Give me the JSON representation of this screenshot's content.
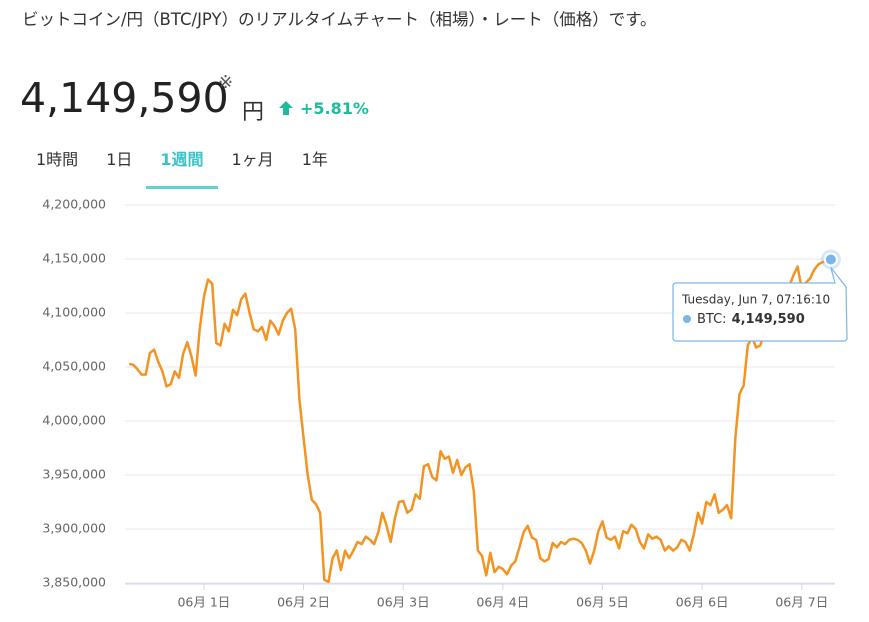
{
  "header": {
    "description": "ビットコイン/円（BTC/JPY）のリアルタイムチャート（相場）・レート（価格）です。",
    "price": "4,149,590",
    "price_note": "※",
    "unit": "円",
    "change": "+5.81%"
  },
  "tabs": {
    "items": [
      "1時間",
      "1日",
      "1週間",
      "1ヶ月",
      "1年"
    ],
    "active": 2
  },
  "chart_data": {
    "type": "line",
    "x": [
      -18,
      -17,
      -16,
      -15,
      -14,
      -13,
      -12,
      -11,
      -10,
      -9,
      -8,
      -7,
      -6,
      -5,
      -4,
      -3,
      -2,
      -1,
      0,
      1,
      2,
      3,
      4,
      5,
      6,
      7,
      8,
      9,
      10,
      11,
      12,
      13,
      14,
      15,
      16,
      17,
      18,
      19,
      20,
      21,
      22,
      23,
      24,
      25,
      26,
      27,
      28,
      29,
      30,
      31,
      32,
      33,
      34,
      35,
      36,
      37,
      38,
      39,
      40,
      41,
      42,
      43,
      44,
      45,
      46,
      47,
      48,
      49,
      50,
      51,
      52,
      53,
      54,
      55,
      56,
      57,
      58,
      59,
      60,
      61,
      62,
      63,
      64,
      65,
      66,
      67,
      68,
      69,
      70,
      71,
      72,
      73,
      74,
      75,
      76,
      77,
      78,
      79,
      80,
      81,
      82,
      83,
      84,
      85,
      86,
      87,
      88,
      89,
      90,
      91,
      92,
      93,
      94,
      95,
      96,
      97,
      98,
      99,
      100,
      101,
      102,
      103,
      104,
      105,
      106,
      107,
      108,
      109,
      110,
      111,
      112,
      113,
      114,
      115,
      116,
      117,
      118,
      119,
      120,
      121,
      122,
      123,
      124,
      125,
      126,
      127,
      128,
      129,
      130,
      131,
      132,
      133,
      134,
      135,
      136,
      137,
      138,
      139,
      140,
      141,
      142,
      143,
      144,
      145,
      146,
      147,
      148,
      149,
      150,
      151
    ],
    "series": [
      {
        "color": "#f39322",
        "values": [
          4053000,
          4052000,
          4048000,
          4043000,
          4043000,
          4063000,
          4066000,
          4055000,
          4046000,
          4032000,
          4034000,
          4046000,
          4040000,
          4062000,
          4073000,
          4060000,
          4042000,
          4085000,
          4115000,
          4131000,
          4127000,
          4072000,
          4070000,
          4090000,
          4083000,
          4103000,
          4098000,
          4113000,
          4118000,
          4100000,
          4085000,
          4083000,
          4087000,
          4075000,
          4093000,
          4088000,
          4080000,
          4093000,
          4100000,
          4104000,
          4085000,
          4020000,
          3985000,
          3950000,
          3927000,
          3923000,
          3915000,
          3853000,
          3851000,
          3873000,
          3880000,
          3862000,
          3880000,
          3873000,
          3880000,
          3888000,
          3886000,
          3893000,
          3890000,
          3886000,
          3897000,
          3915000,
          3903000,
          3888000,
          3910000,
          3925000,
          3926000,
          3915000,
          3918000,
          3932000,
          3928000,
          3958000,
          3960000,
          3948000,
          3945000,
          3972000,
          3965000,
          3967000,
          3952000,
          3964000,
          3950000,
          3957000,
          3960000,
          3935000,
          3880000,
          3875000,
          3857000,
          3878000,
          3860000,
          3865000,
          3863000,
          3858000,
          3866000,
          3870000,
          3883000,
          3897000,
          3903000,
          3892000,
          3890000,
          3873000,
          3870000,
          3872000,
          3887000,
          3883000,
          3888000,
          3886000,
          3890000,
          3891000,
          3890000,
          3887000,
          3880000,
          3868000,
          3880000,
          3898000,
          3907000,
          3892000,
          3890000,
          3893000,
          3882000,
          3898000,
          3896000,
          3904000,
          3900000,
          3888000,
          3882000,
          3895000,
          3891000,
          3893000,
          3890000,
          3880000,
          3884000,
          3880000,
          3883000,
          3890000,
          3888000,
          3880000,
          3895000,
          3915000,
          3905000,
          3925000,
          3922000,
          3932000,
          3915000,
          3918000,
          3922000,
          3910000,
          3985000,
          4025000,
          4033000,
          4070000,
          4078000,
          4068000,
          4070000,
          4083000,
          4088000,
          4098000,
          4103000,
          4115000,
          4112000,
          4125000,
          4135000,
          4143000,
          4122000,
          4128000,
          4132000,
          4140000,
          4145000,
          4147000,
          4148000,
          4149590
        ]
      }
    ],
    "xlim": [
      -19,
      152
    ],
    "xticks": [
      {
        "value": 0,
        "label": "06月 1日"
      },
      {
        "value": 24,
        "label": "06月 2日"
      },
      {
        "value": 48,
        "label": "06月 3日"
      },
      {
        "value": 72,
        "label": "06月 4日"
      },
      {
        "value": 96,
        "label": "06月 5日"
      },
      {
        "value": 120,
        "label": "06月 6日"
      },
      {
        "value": 144,
        "label": "06月 7日"
      }
    ],
    "ylim": [
      3850000,
      4200000
    ],
    "yticks": [
      {
        "value": 3850000,
        "label": "3,850,000"
      },
      {
        "value": 3900000,
        "label": "3,900,000"
      },
      {
        "value": 3950000,
        "label": "3,950,000"
      },
      {
        "value": 4000000,
        "label": "4,000,000"
      },
      {
        "value": 4050000,
        "label": "4,050,000"
      },
      {
        "value": 4100000,
        "label": "4,100,000"
      },
      {
        "value": 4150000,
        "label": "4,150,000"
      },
      {
        "value": 4200000,
        "label": "4,200,000"
      }
    ],
    "grid": true,
    "tooltip": {
      "title": "Tuesday, Jun 7, 07:16:10",
      "label": "BTC:",
      "value_label": "4,149,590"
    }
  }
}
